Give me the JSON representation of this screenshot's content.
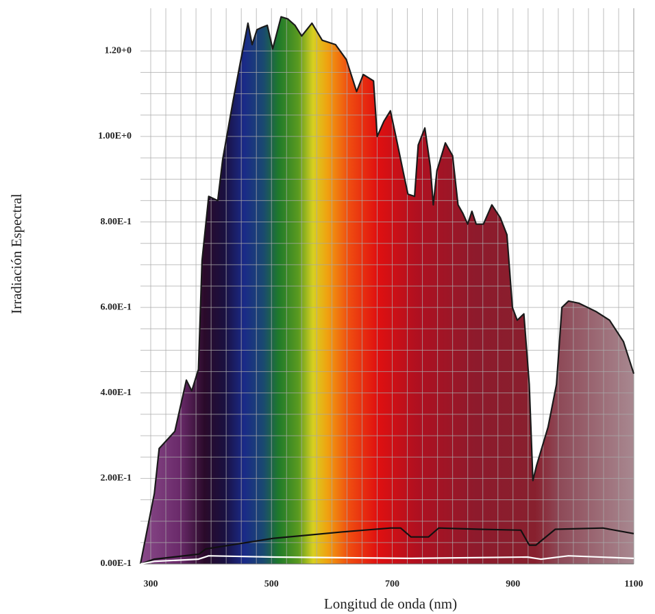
{
  "chart_data": {
    "type": "line",
    "xlabel": "Longitud de onda  (nm)",
    "ylabel": "Irradiación Espectral",
    "xlim": [
      283,
      1100
    ],
    "ylim": [
      0,
      1.3
    ],
    "xticks": [
      300,
      500,
      700,
      900,
      1100
    ],
    "yticks": [
      {
        "value": 0,
        "label": "0.00E-1"
      },
      {
        "value": 0.2,
        "label": "2.00E-1"
      },
      {
        "value": 0.4,
        "label": "4.00E-1"
      },
      {
        "value": 0.6,
        "label": "6.00E-1"
      },
      {
        "value": 0.8,
        "label": "8.00E-1"
      },
      {
        "value": 1.0,
        "label": "1.00E+0"
      },
      {
        "value": 1.2,
        "label": "1.20+0"
      }
    ],
    "grid": true,
    "series": [
      {
        "color": "#1a1a1a",
        "fill": "spectrum",
        "x": [
          283,
          306,
          314,
          340,
          359,
          368,
          379,
          385,
          396,
          411,
          419,
          436,
          448,
          461,
          468,
          476,
          484,
          493,
          502,
          516,
          527,
          539,
          550,
          567,
          584,
          606,
          624,
          641,
          652,
          669,
          675,
          686,
          697,
          706,
          720,
          726,
          737,
          743,
          754,
          763,
          768,
          774,
          788,
          800,
          809,
          817,
          825,
          832,
          839,
          851,
          865,
          879,
          890,
          899,
          907,
          918,
          927,
          933,
          939,
          958,
          972,
          981,
          992,
          1009,
          1038,
          1060,
          1083,
          1100
        ],
        "values": [
          0,
          0.165,
          0.27,
          0.31,
          0.43,
          0.405,
          0.455,
          0.71,
          0.86,
          0.85,
          0.945,
          1.08,
          1.17,
          1.265,
          1.215,
          1.25,
          1.255,
          1.26,
          1.205,
          1.28,
          1.275,
          1.26,
          1.235,
          1.265,
          1.225,
          1.215,
          1.18,
          1.105,
          1.145,
          1.13,
          1.0,
          1.035,
          1.06,
          1.0,
          0.905,
          0.865,
          0.86,
          0.98,
          1.02,
          0.93,
          0.84,
          0.92,
          0.985,
          0.955,
          0.84,
          0.82,
          0.795,
          0.825,
          0.795,
          0.795,
          0.84,
          0.81,
          0.77,
          0.6,
          0.57,
          0.585,
          0.42,
          0.195,
          0.23,
          0.32,
          0.42,
          0.6,
          0.615,
          0.61,
          0.59,
          0.57,
          0.52,
          0.445
        ]
      },
      {
        "color": "#111111",
        "x": [
          283,
          306,
          380,
          391,
          504,
          618,
          697,
          714,
          731,
          760,
          777,
          845,
          913,
          927,
          938,
          970,
          1049,
          1100
        ],
        "values": [
          0,
          0.011,
          0.023,
          0.035,
          0.06,
          0.075,
          0.084,
          0.084,
          0.063,
          0.063,
          0.084,
          0.081,
          0.079,
          0.044,
          0.044,
          0.081,
          0.084,
          0.071
        ]
      },
      {
        "color": "#ffffff",
        "x": [
          283,
          306,
          379,
          396,
          504,
          731,
          924,
          946,
          992,
          1100
        ],
        "values": [
          0,
          0.006,
          0.011,
          0.019,
          0.016,
          0.013,
          0.016,
          0.011,
          0.019,
          0.013
        ]
      }
    ]
  }
}
